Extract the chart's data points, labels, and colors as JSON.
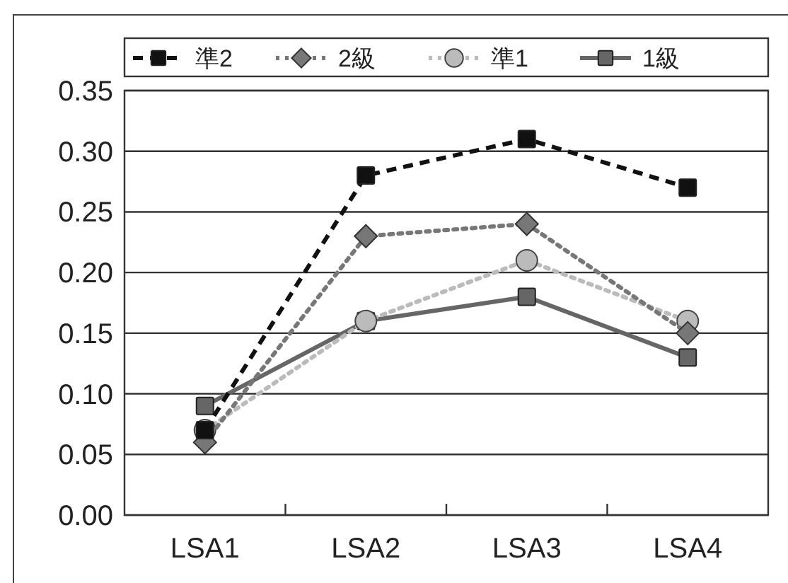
{
  "chart_data": {
    "type": "line",
    "categories": [
      "LSA1",
      "LSA2",
      "LSA3",
      "LSA4"
    ],
    "series": [
      {
        "name": "準2",
        "color": "#111111",
        "marker": "square",
        "line_style": "dashed",
        "values": [
          0.07,
          0.28,
          0.31,
          0.27
        ]
      },
      {
        "name": "2級",
        "color": "#777777",
        "marker": "diamond",
        "line_style": "dotted",
        "values": [
          0.06,
          0.23,
          0.24,
          0.15
        ]
      },
      {
        "name": "準1",
        "color": "#bbbbbb",
        "marker": "circle",
        "line_style": "dotted",
        "values": [
          0.07,
          0.16,
          0.21,
          0.16
        ]
      },
      {
        "name": "1級",
        "color": "#666666",
        "marker": "square",
        "line_style": "solid",
        "values": [
          0.09,
          0.16,
          0.18,
          0.13
        ]
      }
    ],
    "ylim": [
      0,
      0.35
    ],
    "yticks": [
      {
        "value": 0,
        "label": "0.00"
      },
      {
        "value": 0.05,
        "label": "0.05"
      },
      {
        "value": 0.1,
        "label": "0.10"
      },
      {
        "value": 0.15,
        "label": "0.15"
      },
      {
        "value": 0.2,
        "label": "0.20"
      },
      {
        "value": 0.25,
        "label": "0.25"
      },
      {
        "value": 0.3,
        "label": "0.30"
      },
      {
        "value": 0.35,
        "label": "0.35"
      }
    ],
    "grid": "y",
    "legend": "top"
  }
}
